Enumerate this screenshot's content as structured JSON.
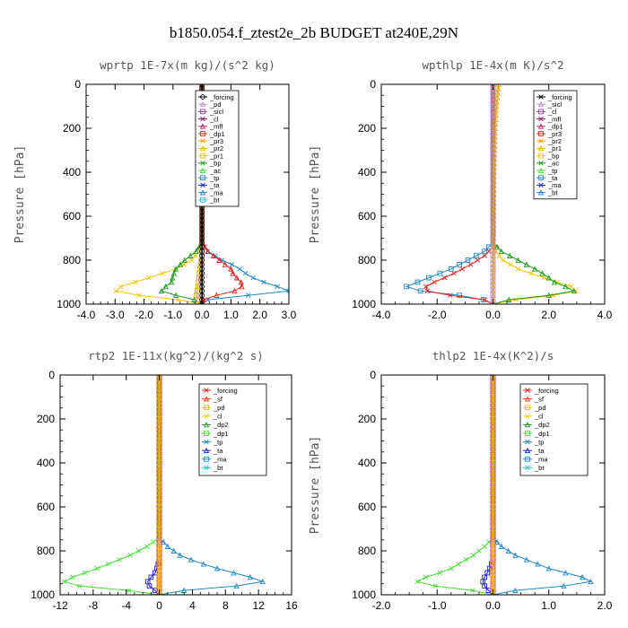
{
  "title": "b1850.054.f_ztest2e_2b  BUDGET at240E,29N",
  "chart_data": [
    {
      "type": "line",
      "title": "wprtp  1E-7x(m kg)/(s^2 kg)",
      "ylabel": "Pressure [hPa]",
      "xlim": [
        -4,
        3
      ],
      "ylim": [
        1000,
        0
      ],
      "xticks": [
        "-4.0",
        "-3.0",
        "-2.0",
        "-1.0",
        "0.0",
        "1.0",
        "2.0",
        "3.0"
      ],
      "xtick_values": [
        -4,
        -3,
        -2,
        -1,
        0,
        1,
        2,
        3
      ],
      "yticks": [
        "0",
        "200",
        "400",
        "600",
        "800",
        "1000"
      ],
      "ytick_values": [
        0,
        200,
        400,
        600,
        800,
        1000
      ],
      "legend": [
        "_forcing",
        "_pd",
        "_sicl",
        "_cl",
        "_mfl",
        "_dp1",
        "_pr3",
        "_pr2",
        "_pr1",
        "_bp",
        "_ac",
        "_tp",
        "_ta",
        "_ma",
        "_bt"
      ],
      "series": [
        {
          "name": "_pr1",
          "color": "#f5c400",
          "p": [
            720,
            760,
            800,
            840,
            870,
            900,
            920,
            935,
            950,
            965,
            985,
            1000
          ],
          "x": [
            0,
            -0.1,
            -0.35,
            -0.9,
            -1.6,
            -2.3,
            -2.8,
            -3.0,
            -2.9,
            -1.8,
            -0.5,
            0
          ]
        },
        {
          "name": "_ac",
          "color": "#1a9a1a",
          "p": [
            720,
            760,
            800,
            840,
            870,
            900,
            920,
            940,
            960,
            975,
            990,
            1000
          ],
          "x": [
            0,
            -0.2,
            -0.6,
            -0.9,
            -1.0,
            -1.05,
            -1.25,
            -1.4,
            -0.9,
            -0.4,
            0,
            0
          ]
        },
        {
          "name": "_pr2",
          "color": "#e8a000",
          "p": [
            780,
            820,
            870,
            900,
            930,
            960,
            990,
            1000
          ],
          "x": [
            0,
            -0.05,
            -0.1,
            -0.12,
            -0.15,
            -0.2,
            -0.05,
            0
          ]
        },
        {
          "name": "_tp",
          "color": "#1f88c8",
          "p": [
            720,
            760,
            800,
            830,
            860,
            890,
            920,
            940,
            960,
            980,
            1000
          ],
          "x": [
            0,
            0.2,
            0.7,
            1.2,
            1.5,
            1.9,
            2.6,
            3.0,
            1.6,
            0.2,
            0
          ]
        },
        {
          "name": "_dp1",
          "color": "#e0201c",
          "p": [
            720,
            760,
            800,
            840,
            870,
            890,
            910,
            930,
            950,
            965,
            980,
            1000
          ],
          "x": [
            0,
            0.2,
            0.6,
            1.0,
            1.1,
            1.3,
            1.4,
            1.35,
            0.9,
            0.3,
            0.05,
            0
          ]
        },
        {
          "name": "_forcing",
          "color": "#000000",
          "p": [
            0,
            1000
          ],
          "x": [
            0,
            0
          ]
        }
      ]
    },
    {
      "type": "line",
      "title": "wpthlp  1E-4x(m K)/s^2",
      "ylabel": "Pressure [hPa]",
      "xlim": [
        -4,
        4
      ],
      "ylim": [
        1000,
        0
      ],
      "xticks": [
        "-4.0",
        "-2.0",
        "0.0",
        "2.0",
        "4.0"
      ],
      "xtick_values": [
        -4,
        -2,
        0,
        2,
        4
      ],
      "yticks": [
        "0",
        "200",
        "400",
        "600",
        "800",
        "1000"
      ],
      "ytick_values": [
        0,
        200,
        400,
        600,
        800,
        1000
      ],
      "legend": [
        "_forcing",
        "_sicl",
        "_cl",
        "_mfl",
        "_dp1",
        "_pr3",
        "_pr2",
        "_pr1",
        "_bp",
        "_ac",
        "_tp",
        "_ta",
        "_ma",
        "_bt"
      ],
      "series": [
        {
          "name": "_pr1",
          "color": "#f5c400",
          "p": [
            720,
            760,
            800,
            840,
            870,
            900,
            920,
            935,
            950,
            965,
            985,
            1000
          ],
          "x": [
            0,
            0.1,
            0.35,
            0.9,
            1.6,
            2.3,
            2.8,
            3.0,
            2.9,
            1.8,
            0.5,
            0
          ]
        },
        {
          "name": "_ac",
          "color": "#1a9a1a",
          "p": [
            720,
            760,
            800,
            840,
            870,
            900,
            920,
            940,
            960,
            975,
            990,
            1000
          ],
          "x": [
            0,
            0.3,
            0.9,
            1.5,
            1.9,
            2.2,
            2.6,
            2.9,
            2.0,
            0.8,
            0.1,
            0
          ]
        },
        {
          "name": "_tp",
          "color": "#1f88c8",
          "p": [
            720,
            760,
            800,
            840,
            870,
            900,
            920,
            935,
            950,
            970,
            990,
            1000
          ],
          "x": [
            0,
            -0.3,
            -0.9,
            -1.5,
            -2.1,
            -2.7,
            -3.1,
            -3.0,
            -1.8,
            -0.6,
            -0.1,
            0
          ]
        },
        {
          "name": "_dp1",
          "color": "#e0201c",
          "p": [
            740,
            780,
            820,
            860,
            890,
            910,
            930,
            950,
            965,
            980,
            1000
          ],
          "x": [
            0,
            -0.3,
            -0.8,
            -1.4,
            -1.9,
            -2.3,
            -2.5,
            -2.2,
            -1.2,
            -0.3,
            0
          ]
        },
        {
          "name": "_pr3",
          "color": "#e8a000",
          "p": [
            0,
            100,
            200,
            400,
            1000
          ],
          "x": [
            0.2,
            0.12,
            0.08,
            0.04,
            0
          ]
        },
        {
          "name": "_forcing",
          "color": "#c78bd6",
          "p": [
            0,
            1000
          ],
          "x": [
            0,
            0
          ]
        }
      ]
    },
    {
      "type": "line",
      "title": "rtp2  1E-11x(kg^2)/(kg^2 s)",
      "ylabel": "Pressure [hPa]",
      "xlim": [
        -12,
        16
      ],
      "ylim": [
        1000,
        0
      ],
      "xticks": [
        "-12",
        "-8",
        "-4",
        "0",
        "4",
        "8",
        "12",
        "16"
      ],
      "xtick_values": [
        -12,
        -8,
        -4,
        0,
        4,
        8,
        12,
        16
      ],
      "yticks": [
        "0",
        "200",
        "400",
        "600",
        "800",
        "1000"
      ],
      "ytick_values": [
        0,
        200,
        400,
        600,
        800,
        1000
      ],
      "legend": [
        "_forcing",
        "_sf",
        "_pd",
        "_cl",
        "_dp2",
        "_dp1",
        "_tp",
        "_ta",
        "_ma",
        "_bt"
      ],
      "series": [
        {
          "name": "_dp1",
          "color": "#44dd33",
          "p": [
            740,
            780,
            820,
            850,
            880,
            900,
            920,
            940,
            955,
            970,
            985,
            1000
          ],
          "x": [
            0,
            -1.5,
            -3.5,
            -5.5,
            -7.5,
            -9,
            -10.5,
            -11.5,
            -11,
            -7,
            -2,
            0
          ]
        },
        {
          "name": "_tp",
          "color": "#1f88c8",
          "p": [
            740,
            780,
            820,
            850,
            880,
            900,
            920,
            940,
            955,
            970,
            985,
            1000
          ],
          "x": [
            0,
            1,
            2.5,
            4.5,
            7,
            9,
            11,
            12.5,
            11,
            6,
            1.5,
            0
          ]
        },
        {
          "name": "_ta",
          "color": "#2020c8",
          "p": [
            840,
            870,
            900,
            920,
            940,
            960,
            980,
            1000
          ],
          "x": [
            0,
            -0.2,
            -0.5,
            -1,
            -1.4,
            -1.2,
            -0.5,
            0
          ]
        },
        {
          "name": "_forcing",
          "color": "#e0201c",
          "p": [
            0,
            1000
          ],
          "x": [
            0,
            0
          ]
        },
        {
          "name": "_pd",
          "color": "#f5b400",
          "p": [
            0,
            1000
          ],
          "x": [
            0,
            0
          ]
        }
      ]
    },
    {
      "type": "line",
      "title": "thlp2  1E-4x(K^2)/s",
      "ylabel": "Pressure [hPa]",
      "xlim": [
        -2,
        2
      ],
      "ylim": [
        1000,
        0
      ],
      "xticks": [
        "-2.0",
        "-1.0",
        "0.0",
        "1.0",
        "2.0"
      ],
      "xtick_values": [
        -2,
        -1,
        0,
        1,
        2
      ],
      "yticks": [
        "0",
        "200",
        "400",
        "600",
        "800",
        "1000"
      ],
      "ytick_values": [
        0,
        200,
        400,
        600,
        800,
        1000
      ],
      "legend": [
        "_forcing",
        "_sf",
        "_pd",
        "_cl",
        "_dp2",
        "_dp1",
        "_tp",
        "_ta",
        "_ma",
        "_bt"
      ],
      "series": [
        {
          "name": "_dp1",
          "color": "#44dd33",
          "p": [
            740,
            780,
            820,
            850,
            880,
            900,
            920,
            940,
            955,
            970,
            985,
            1000
          ],
          "x": [
            0,
            -0.15,
            -0.35,
            -0.55,
            -0.75,
            -0.95,
            -1.2,
            -1.35,
            -1.2,
            -0.7,
            -0.2,
            0
          ]
        },
        {
          "name": "_tp",
          "color": "#1f88c8",
          "p": [
            740,
            780,
            820,
            850,
            880,
            900,
            920,
            940,
            955,
            970,
            985,
            1000
          ],
          "x": [
            0,
            0.15,
            0.4,
            0.7,
            1.0,
            1.3,
            1.6,
            1.75,
            1.5,
            0.8,
            0.2,
            0
          ]
        },
        {
          "name": "_ta",
          "color": "#2020c8",
          "p": [
            840,
            870,
            900,
            920,
            940,
            960,
            980,
            1000
          ],
          "x": [
            0,
            -0.04,
            -0.1,
            -0.15,
            -0.18,
            -0.15,
            -0.08,
            0
          ]
        },
        {
          "name": "_forcing",
          "color": "#e0201c",
          "p": [
            0,
            1000
          ],
          "x": [
            0,
            0
          ]
        },
        {
          "name": "_pd",
          "color": "#f5b400",
          "p": [
            0,
            1000
          ],
          "x": [
            0,
            0
          ]
        }
      ]
    }
  ]
}
